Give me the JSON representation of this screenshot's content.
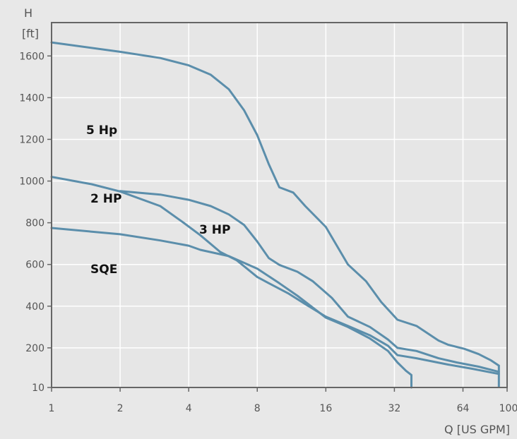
{
  "chart_data": {
    "type": "line",
    "xlabel": "Q [US  GPM]",
    "ylabel_line1": "H",
    "ylabel_line2": "[ft]",
    "x_scale": "log2",
    "xlim": [
      1,
      100
    ],
    "ylim": [
      10,
      1760
    ],
    "x_ticks": [
      1,
      2,
      4,
      8,
      16,
      32,
      64
    ],
    "x_tick_labels": [
      "1",
      "2",
      "4",
      "8",
      "16",
      "32",
      "64"
    ],
    "x_end_label": "100",
    "y_ticks": [
      10,
      200,
      400,
      600,
      800,
      1000,
      1200,
      1400,
      1600
    ],
    "y_tick_labels": [
      "10",
      "200",
      "400",
      "600",
      "800",
      "1000",
      "1200",
      "1400",
      "1600"
    ],
    "grid": true,
    "colors": {
      "background": "#e8e8e8",
      "plot_background": "#e6e6e6",
      "grid": "#ffffff",
      "frame": "#666666",
      "curve": "#5b8eab"
    },
    "series": [
      {
        "name": "5 Hp",
        "points": [
          [
            1,
            1665
          ],
          [
            2,
            1620
          ],
          [
            3,
            1590
          ],
          [
            4,
            1555
          ],
          [
            5,
            1510
          ],
          [
            6,
            1440
          ],
          [
            7,
            1340
          ],
          [
            8,
            1220
          ],
          [
            9,
            1080
          ],
          [
            10,
            970
          ],
          [
            11.5,
            945
          ],
          [
            13,
            880
          ],
          [
            16,
            780
          ],
          [
            20,
            600
          ],
          [
            24,
            520
          ],
          [
            28,
            420
          ],
          [
            33,
            335
          ],
          [
            40,
            305
          ],
          [
            50,
            235
          ],
          [
            55,
            215
          ],
          [
            65,
            195
          ],
          [
            75,
            170
          ],
          [
            85,
            140
          ],
          [
            92,
            115
          ]
        ]
      },
      {
        "name": "3 HP",
        "points": [
          [
            2,
            952
          ],
          [
            3,
            935
          ],
          [
            4,
            910
          ],
          [
            5,
            880
          ],
          [
            6,
            840
          ],
          [
            7,
            790
          ],
          [
            8,
            710
          ],
          [
            9,
            630
          ],
          [
            10,
            598
          ],
          [
            12,
            565
          ],
          [
            14,
            520
          ],
          [
            17,
            440
          ],
          [
            20,
            350
          ],
          [
            25,
            300
          ],
          [
            30,
            240
          ],
          [
            33,
            200
          ],
          [
            40,
            185
          ],
          [
            50,
            150
          ],
          [
            60,
            130
          ],
          [
            75,
            110
          ],
          [
            92,
            85
          ]
        ]
      },
      {
        "name": "2 HP",
        "points": [
          [
            1,
            1020
          ],
          [
            1.5,
            985
          ],
          [
            2,
            950
          ],
          [
            3,
            880
          ],
          [
            3.8,
            800
          ],
          [
            4.5,
            740
          ],
          [
            5.5,
            660
          ],
          [
            6.5,
            620
          ],
          [
            8,
            540
          ],
          [
            9,
            510
          ],
          [
            11,
            460
          ],
          [
            13,
            410
          ],
          [
            16,
            350
          ],
          [
            20,
            305
          ],
          [
            25,
            260
          ],
          [
            30,
            210
          ],
          [
            33,
            165
          ],
          [
            40,
            150
          ],
          [
            55,
            120
          ],
          [
            70,
            100
          ],
          [
            92,
            75
          ]
        ]
      },
      {
        "name": "SQE",
        "points": [
          [
            1,
            775
          ],
          [
            2,
            745
          ],
          [
            3,
            715
          ],
          [
            4,
            690
          ],
          [
            4.5,
            670
          ],
          [
            6,
            640
          ],
          [
            8,
            580
          ],
          [
            10,
            510
          ],
          [
            12,
            450
          ],
          [
            16,
            345
          ],
          [
            20,
            300
          ],
          [
            25,
            245
          ],
          [
            30,
            185
          ],
          [
            33,
            130
          ],
          [
            36,
            90
          ],
          [
            38,
            70
          ],
          [
            38,
            10
          ]
        ]
      }
    ],
    "vertical_segments": [
      {
        "x": 92,
        "y_from": 10,
        "y_to": 115
      }
    ]
  }
}
